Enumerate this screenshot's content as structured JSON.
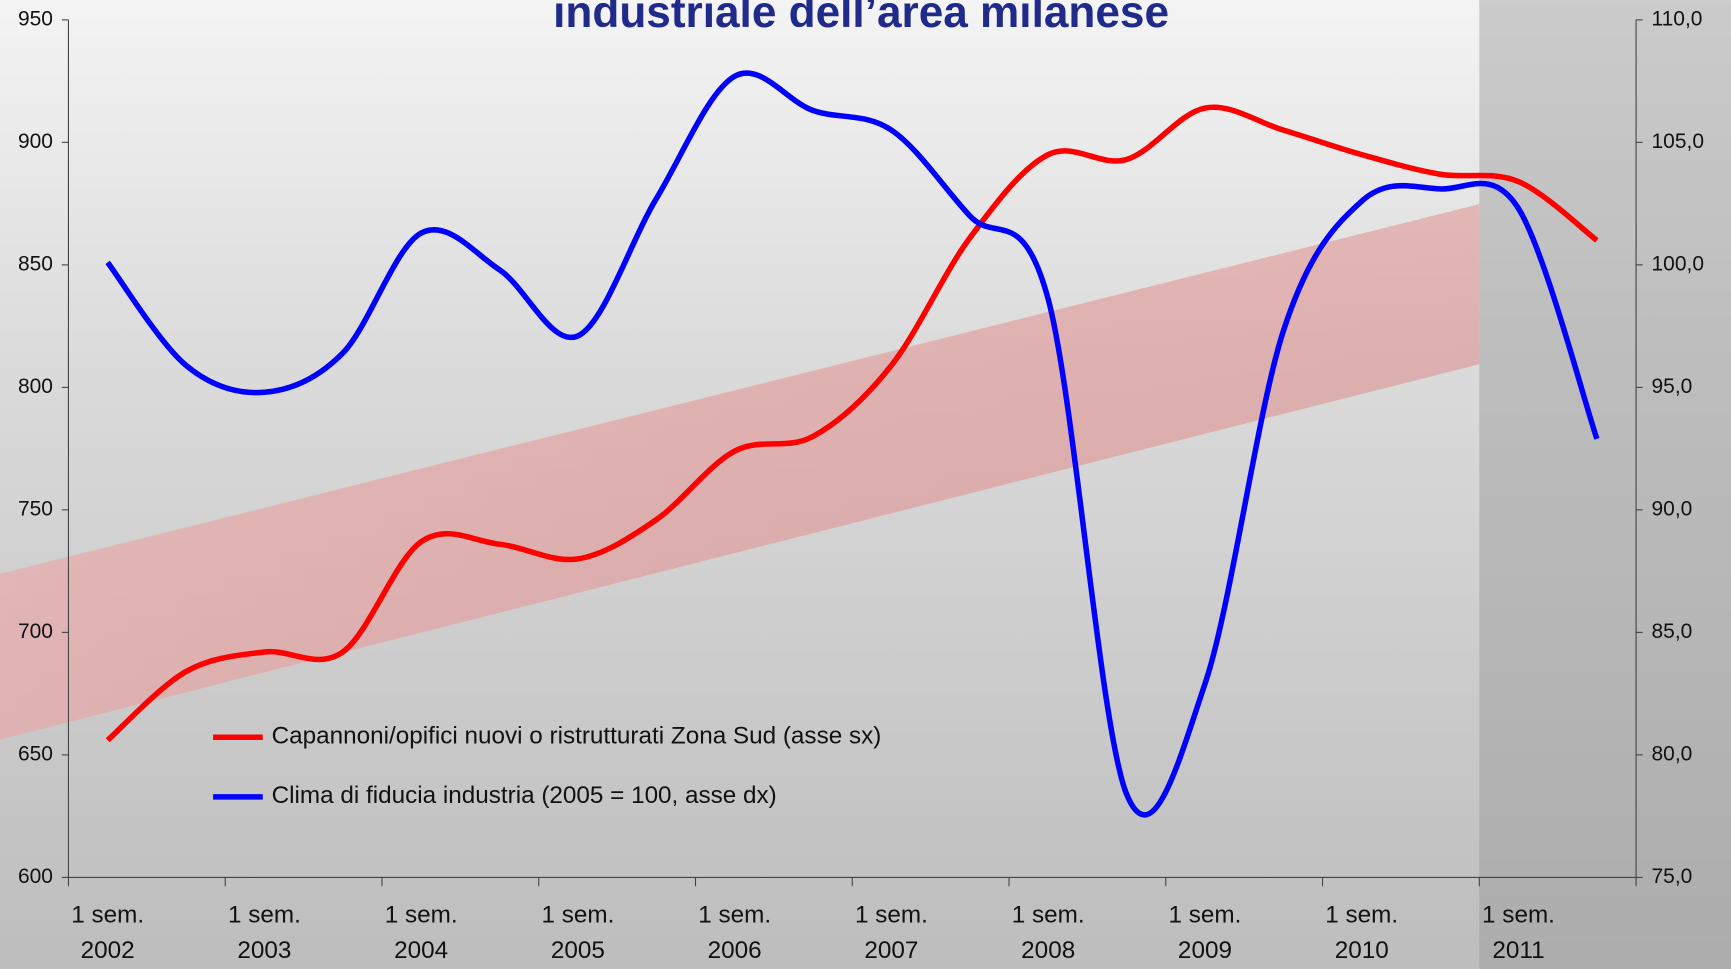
{
  "chart_data": {
    "type": "line",
    "title": "industriale dell’area milanese",
    "categories": [
      "1 sem. 2002",
      null,
      "1 sem. 2003",
      null,
      "1 sem. 2004",
      null,
      "1 sem. 2005",
      null,
      "1 sem. 2006",
      null,
      "1 sem. 2007",
      null,
      "1 sem. 2008",
      null,
      "1 sem. 2009",
      null,
      "1 sem. 2010",
      null,
      "1 sem. 2011",
      null
    ],
    "series": [
      {
        "name": "Capannoni/opifici nuovi o ristrutturati Zona Sud (asse sx)",
        "color": "#ff0000",
        "values": [
          656,
          684,
          692,
          692,
          737,
          736,
          730,
          746,
          774,
          780,
          809,
          861,
          895,
          893,
          914,
          905,
          895,
          887,
          884,
          860
        ]
      },
      {
        "name": "Clima di fiducia industria (2005 = 100, asse dx)",
        "color": "#0000ff",
        "axis": "y2",
        "values": [
          100.1,
          95.9,
          94.8,
          96.4,
          101.3,
          99.8,
          97.1,
          102.7,
          107.7,
          106.3,
          105.5,
          102.0,
          98.6,
          78.4,
          82.9,
          97.3,
          102.6,
          103.1,
          102.3,
          92.9
        ]
      }
    ],
    "ylim": [
      600,
      950
    ],
    "yticks": [
      600,
      650,
      700,
      750,
      800,
      850,
      900,
      950
    ],
    "y2lim": [
      75,
      110
    ],
    "y2ticks": [
      {
        "value": 75,
        "label": "75,0"
      },
      {
        "value": 80,
        "label": "80,0"
      },
      {
        "value": 85,
        "label": "85,0"
      },
      {
        "value": 90,
        "label": "90,0"
      },
      {
        "value": 95,
        "label": "95,0"
      },
      {
        "value": 100,
        "label": "100,0"
      },
      {
        "value": 105,
        "label": "105,0"
      },
      {
        "value": 110,
        "label": "110,0"
      }
    ]
  }
}
